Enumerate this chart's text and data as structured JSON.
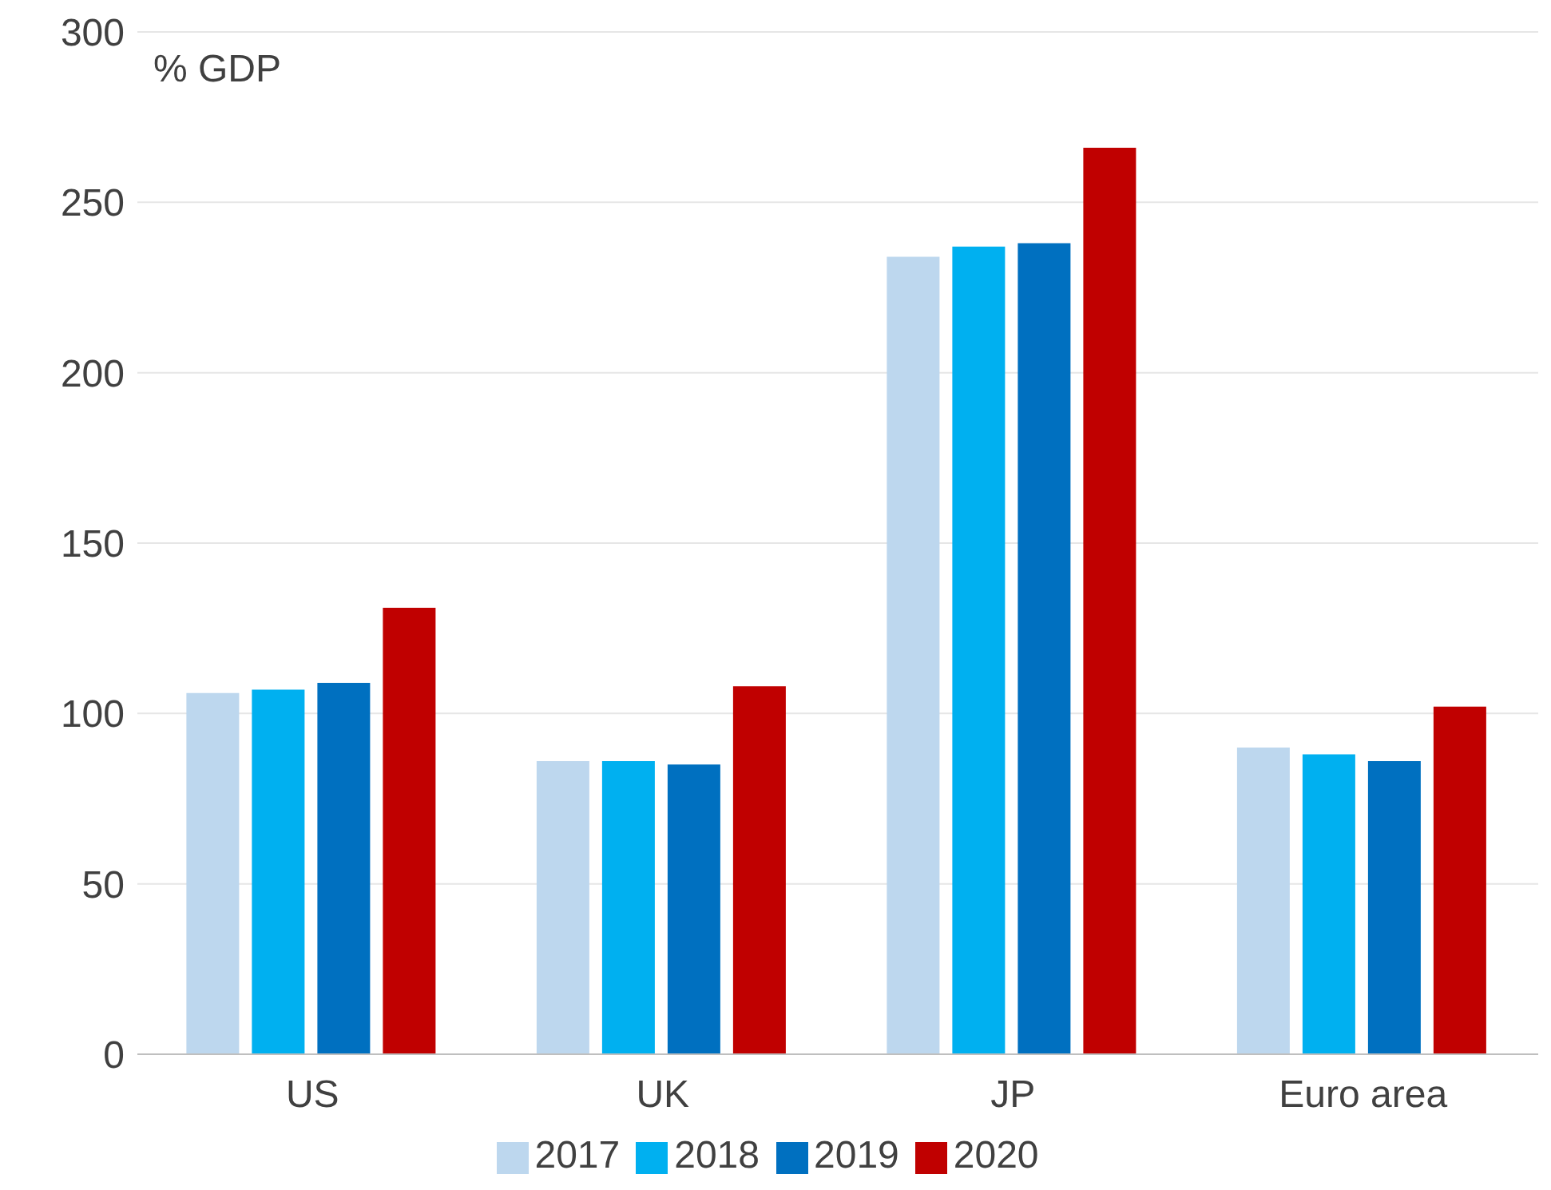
{
  "chart_data": {
    "type": "bar",
    "ylabel": "% GDP",
    "categories": [
      "US",
      "UK",
      "JP",
      "Euro area"
    ],
    "series": [
      {
        "name": "2017",
        "color": "#bdd7ee",
        "values": [
          106,
          86,
          234,
          90
        ]
      },
      {
        "name": "2018",
        "color": "#00b0f0",
        "values": [
          107,
          86,
          237,
          88
        ]
      },
      {
        "name": "2019",
        "color": "#0070c0",
        "values": [
          109,
          85,
          238,
          86
        ]
      },
      {
        "name": "2020",
        "color": "#c00000",
        "values": [
          131,
          108,
          266,
          102
        ]
      }
    ],
    "ylim": [
      0,
      300
    ],
    "yticks": [
      0,
      50,
      100,
      150,
      200,
      250,
      300
    ],
    "grid": "y",
    "legend": "bottom"
  }
}
